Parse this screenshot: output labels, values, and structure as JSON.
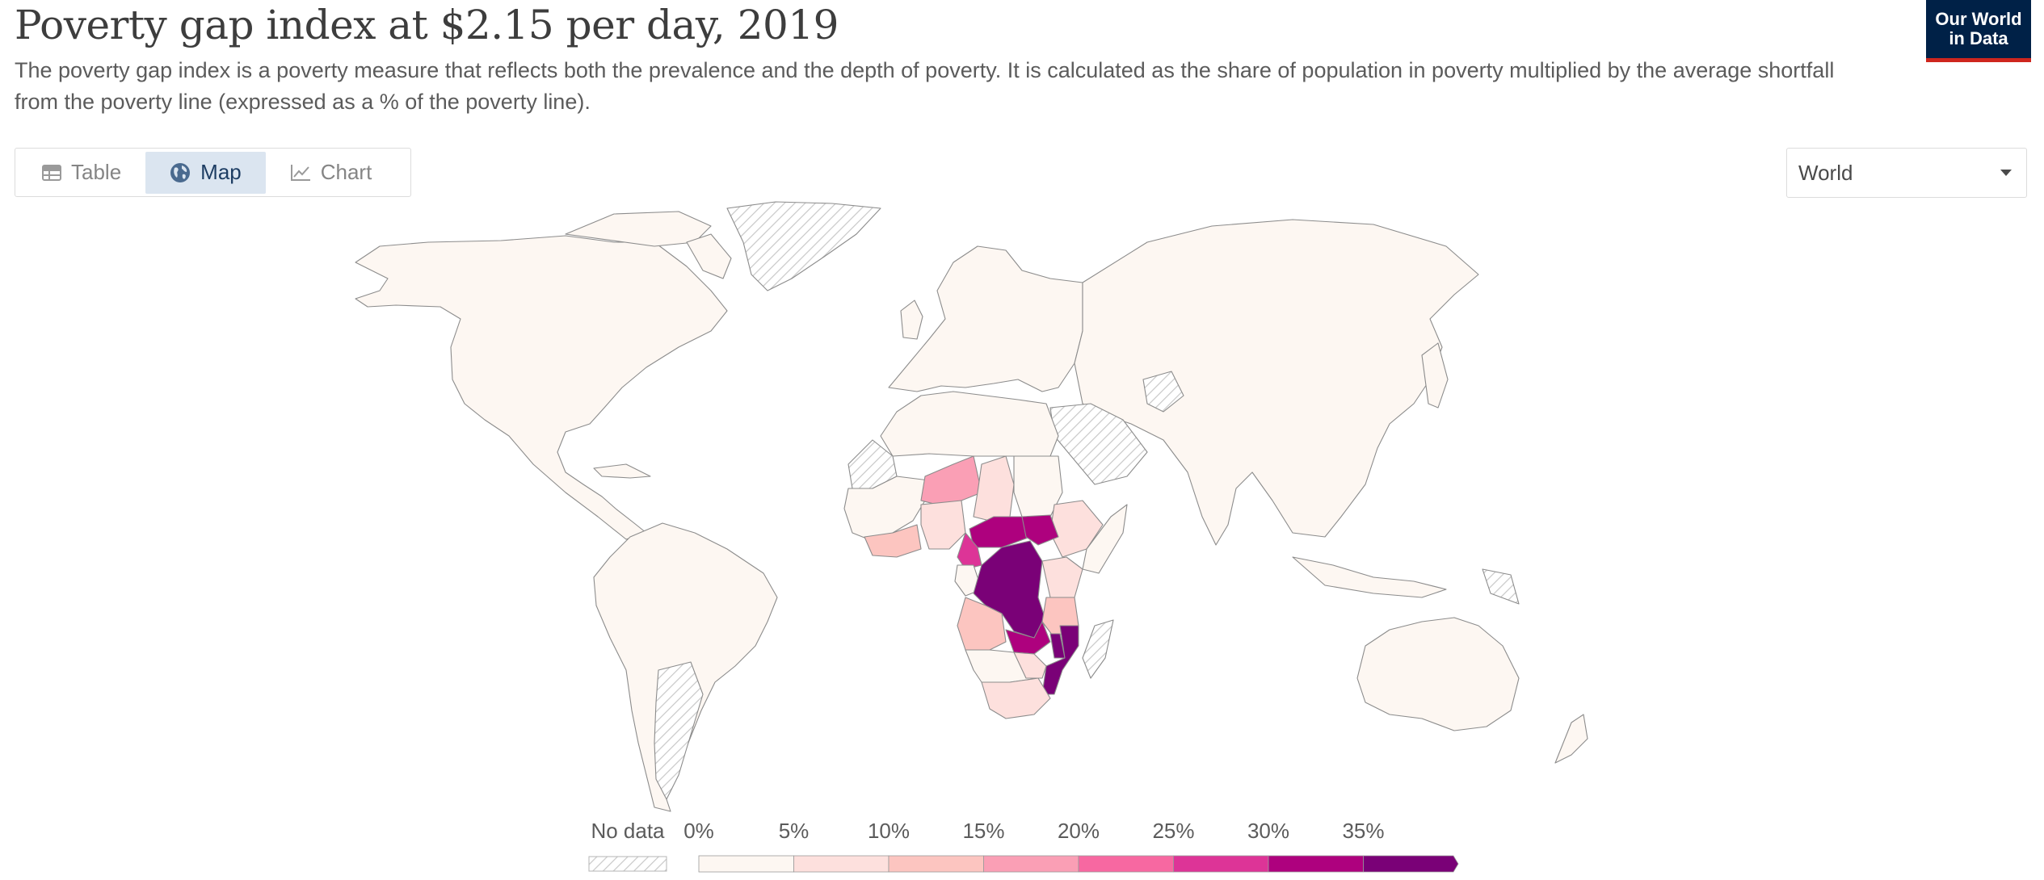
{
  "header": {
    "title": "Poverty gap index at $2.15 per day, 2019",
    "subtitle": "The poverty gap index is a poverty measure that reflects both the prevalence and the depth of poverty. It is calculated as the share of population in poverty multiplied by the average shortfall from the poverty line (expressed as a % of the poverty line).",
    "logo_line1": "Our World",
    "logo_line2": "in Data"
  },
  "tabs": [
    {
      "label": "Table",
      "icon": "table-icon"
    },
    {
      "label": "Map",
      "icon": "globe-icon",
      "active": true
    },
    {
      "label": "Chart",
      "icon": "line-chart-icon"
    }
  ],
  "region_select": {
    "value": "World"
  },
  "legend": {
    "no_data_label": "No data",
    "bins": [
      {
        "label": "0%",
        "color": "#fdf7f2"
      },
      {
        "label": "5%",
        "color": "#fde0dd"
      },
      {
        "label": "10%",
        "color": "#fcc5c0"
      },
      {
        "label": "15%",
        "color": "#fa9fb5"
      },
      {
        "label": "20%",
        "color": "#f768a1"
      },
      {
        "label": "25%",
        "color": "#dd3497"
      },
      {
        "label": "30%",
        "color": "#ae017e"
      },
      {
        "label": "35%",
        "color": "#7a0177"
      }
    ]
  },
  "map_data": {
    "indicator": "Poverty gap index at $2.15 per day",
    "year": 2019,
    "unit": "%",
    "regions": [
      {
        "name": "North America",
        "bin": 0
      },
      {
        "name": "Greenland",
        "bin": "no-data"
      },
      {
        "name": "South America",
        "bin": 0
      },
      {
        "name": "Europe",
        "bin": 0
      },
      {
        "name": "Asia",
        "bin": 0
      },
      {
        "name": "Australia",
        "bin": 0
      },
      {
        "name": "Western Sahara",
        "bin": "no-data"
      },
      {
        "name": "Niger",
        "bin": 3
      },
      {
        "name": "Central African Republic",
        "bin": 6
      },
      {
        "name": "South Sudan",
        "bin": 6
      },
      {
        "name": "DR Congo",
        "bin": 7
      },
      {
        "name": "Malawi",
        "bin": 7
      },
      {
        "name": "Mozambique",
        "bin": 7
      },
      {
        "name": "Zambia",
        "bin": 6
      },
      {
        "name": "Angola",
        "bin": 2
      },
      {
        "name": "Tanzania",
        "bin": 2
      },
      {
        "name": "Madagascar",
        "bin": "no-data"
      }
    ]
  }
}
